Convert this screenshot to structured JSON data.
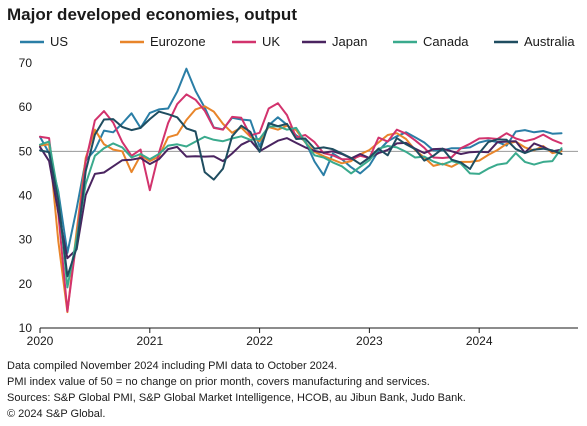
{
  "chart_data": {
    "type": "line",
    "title": "Major developed economies, output",
    "ylim": [
      10,
      70
    ],
    "yticks": [
      10,
      20,
      30,
      40,
      50,
      60,
      70
    ],
    "xlim": [
      2020.0,
      2024.9
    ],
    "xticks": [
      {
        "label": "2020",
        "value": 2020.0
      },
      {
        "label": "2021",
        "value": 2021.0
      },
      {
        "label": "2022",
        "value": 2022.0
      },
      {
        "label": "2023",
        "value": 2023.0
      },
      {
        "label": "2024",
        "value": 2024.0
      }
    ],
    "grid": false,
    "legend": "top",
    "reference_line": 50,
    "x_months": [
      "2020-01",
      "2020-02",
      "2020-03",
      "2020-04",
      "2020-05",
      "2020-06",
      "2020-07",
      "2020-08",
      "2020-09",
      "2020-10",
      "2020-11",
      "2020-12",
      "2021-01",
      "2021-02",
      "2021-03",
      "2021-04",
      "2021-05",
      "2021-06",
      "2021-07",
      "2021-08",
      "2021-09",
      "2021-10",
      "2021-11",
      "2021-12",
      "2022-01",
      "2022-02",
      "2022-03",
      "2022-04",
      "2022-05",
      "2022-06",
      "2022-07",
      "2022-08",
      "2022-09",
      "2022-10",
      "2022-11",
      "2022-12",
      "2023-01",
      "2023-02",
      "2023-03",
      "2023-04",
      "2023-05",
      "2023-06",
      "2023-07",
      "2023-08",
      "2023-09",
      "2023-10",
      "2023-11",
      "2023-12",
      "2024-01",
      "2024-02",
      "2024-03",
      "2024-04",
      "2024-05",
      "2024-06",
      "2024-07",
      "2024-08",
      "2024-09",
      "2024-10"
    ],
    "series": [
      {
        "name": "US",
        "color": "#2a7ea6",
        "values": [
          53.3,
          49.6,
          40.9,
          27.0,
          37.0,
          47.9,
          50.3,
          54.7,
          54.3,
          56.3,
          58.6,
          55.3,
          58.7,
          59.5,
          59.7,
          63.5,
          68.7,
          63.7,
          59.9,
          55.4,
          55.0,
          57.6,
          57.2,
          57.0,
          51.1,
          55.9,
          57.7,
          56.0,
          53.6,
          52.3,
          47.7,
          44.6,
          49.5,
          48.2,
          46.4,
          45.0,
          46.8,
          50.1,
          52.3,
          53.4,
          54.3,
          53.2,
          52.0,
          50.2,
          50.2,
          50.7,
          50.7,
          50.9,
          52.0,
          52.5,
          52.1,
          51.3,
          54.5,
          54.8,
          54.3,
          54.6,
          54.0,
          54.1
        ]
      },
      {
        "name": "Eurozone",
        "color": "#e8852a",
        "values": [
          51.3,
          51.6,
          29.7,
          13.6,
          31.9,
          48.5,
          54.9,
          51.6,
          50.4,
          50.0,
          45.3,
          49.1,
          47.8,
          48.8,
          53.2,
          53.8,
          57.1,
          59.5,
          60.2,
          59.0,
          56.2,
          54.2,
          55.4,
          53.3,
          52.3,
          55.5,
          54.9,
          55.8,
          54.8,
          52.0,
          49.9,
          48.9,
          48.1,
          47.3,
          47.8,
          49.3,
          50.3,
          52.0,
          53.7,
          54.1,
          52.8,
          50.3,
          48.6,
          46.7,
          47.2,
          46.5,
          47.6,
          47.6,
          47.9,
          49.2,
          50.3,
          51.7,
          52.2,
          50.9,
          50.2,
          51.2,
          49.6,
          50.0
        ]
      },
      {
        "name": "UK",
        "color": "#d2336d",
        "values": [
          53.3,
          53.0,
          36.0,
          13.8,
          30.0,
          47.7,
          57.0,
          59.1,
          56.5,
          52.1,
          49.0,
          50.4,
          41.2,
          49.6,
          56.4,
          60.7,
          62.9,
          61.7,
          59.2,
          55.3,
          54.9,
          57.8,
          57.6,
          53.6,
          54.2,
          59.7,
          60.9,
          58.2,
          53.1,
          53.7,
          52.1,
          49.6,
          49.1,
          48.2,
          48.2,
          49.0,
          48.5,
          53.1,
          52.2,
          54.9,
          54.0,
          52.5,
          50.8,
          48.6,
          48.5,
          48.7,
          50.7,
          51.7,
          52.9,
          53.0,
          52.8,
          54.1,
          52.9,
          52.3,
          52.8,
          53.8,
          52.6,
          51.8
        ]
      },
      {
        "name": "Japan",
        "color": "#4a2460",
        "values": [
          51.0,
          47.8,
          36.2,
          25.8,
          27.8,
          40.1,
          44.9,
          45.2,
          46.6,
          48.0,
          48.1,
          48.5,
          47.1,
          48.2,
          50.5,
          51.0,
          48.8,
          48.9,
          48.8,
          48.9,
          47.8,
          49.5,
          51.5,
          52.5,
          50.0,
          51.2,
          52.4,
          53.0,
          51.9,
          50.9,
          50.1,
          49.7,
          50.0,
          49.4,
          48.4,
          49.4,
          48.5,
          49.6,
          50.3,
          51.8,
          51.9,
          50.6,
          49.6,
          50.5,
          50.6,
          50.0,
          49.4,
          49.8,
          49.9,
          49.8,
          52.1,
          52.2,
          52.3,
          49.7,
          51.8,
          51.0,
          50.0,
          50.4
        ]
      },
      {
        "name": "Canada",
        "color": "#3aaa8d",
        "values": [
          51.5,
          52.2,
          40.1,
          19.2,
          30.3,
          42.6,
          49.0,
          50.7,
          51.8,
          50.9,
          48.6,
          49.4,
          48.2,
          49.4,
          51.3,
          51.6,
          51.1,
          52.2,
          53.3,
          52.6,
          52.3,
          52.9,
          53.4,
          52.6,
          52.8,
          55.6,
          55.7,
          54.9,
          55.3,
          52.1,
          49.1,
          48.6,
          47.5,
          46.6,
          45.0,
          46.5,
          48.0,
          50.6,
          51.2,
          50.9,
          49.9,
          48.6,
          48.8,
          47.7,
          47.0,
          47.8,
          47.2,
          45.0,
          44.9,
          46.1,
          47.0,
          47.3,
          49.6,
          47.6,
          47.0,
          47.6,
          47.8,
          50.7
        ]
      },
      {
        "name": "Australia",
        "color": "#1f4d60",
        "values": [
          50.2,
          49.8,
          38.9,
          21.7,
          28.1,
          45.5,
          53.8,
          57.2,
          57.3,
          55.5,
          54.8,
          55.3,
          57.3,
          59.0,
          58.4,
          57.7,
          55.2,
          54.5,
          45.3,
          43.6,
          46.1,
          53.4,
          55.8,
          54.4,
          49.9,
          56.4,
          55.7,
          56.2,
          52.8,
          52.9,
          50.6,
          50.9,
          50.5,
          49.5,
          48.5,
          47.1,
          48.6,
          50.6,
          49.1,
          53.0,
          51.6,
          50.5,
          47.9,
          49.0,
          50.6,
          48.1,
          47.5,
          46.0,
          49.6,
          52.1,
          52.7,
          52.6,
          50.5,
          49.6,
          50.4,
          50.6,
          50.2,
          49.4
        ]
      }
    ]
  },
  "notes": [
    "Data compiled November 2024 including PMI data to October 2024.",
    "PMI index value of 50 = no change on prior month, covers manufacturing and services.",
    "Sources: S&P Global PMI, S&P Global Market Intelligence, HCOB, au Jibun Bank, Judo Bank.",
    "© 2024 S&P Global."
  ]
}
